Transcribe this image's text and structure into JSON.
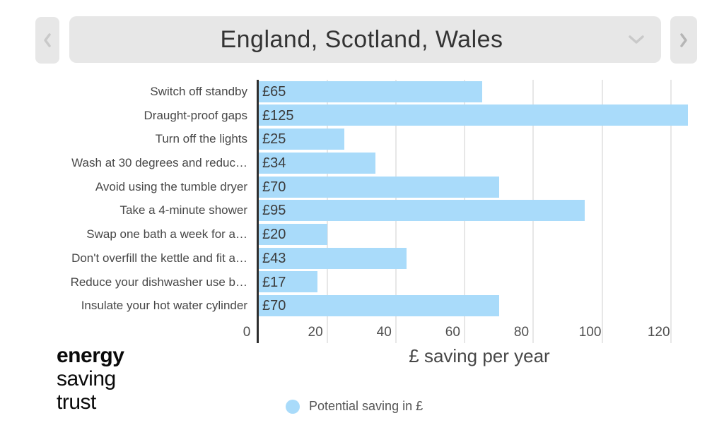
{
  "selector": {
    "value": "England, Scotland, Wales",
    "prev_icon": "chevron-left-icon",
    "next_icon": "chevron-right-icon",
    "dropdown_icon": "chevron-down-icon"
  },
  "logo": {
    "lines": [
      "energy",
      "saving",
      "trust"
    ]
  },
  "colors": {
    "bar": "#a9dbfa",
    "gridline": "#e7e7e7",
    "axis": "#2e2e2e",
    "control_bg": "#e7e7e7"
  },
  "chart_data": {
    "type": "bar",
    "orientation": "horizontal",
    "title": "",
    "categories": [
      "Switch off standby",
      "Draught-proof gaps",
      "Turn off the lights",
      "Wash at 30 degrees and reduc…",
      "Avoid using the tumble dryer",
      "Take a 4-minute shower",
      "Swap one bath a week for a…",
      "Don't overfill the kettle and fit a…",
      "Reduce your dishwasher use b…",
      "Insulate your hot water cylinder"
    ],
    "values": [
      65,
      125,
      25,
      34,
      70,
      95,
      20,
      43,
      17,
      70
    ],
    "bar_labels": [
      "£65",
      "£125",
      "£25",
      "£34",
      "£70",
      "£95",
      "£20",
      "£43",
      "£17",
      "£70"
    ],
    "xlabel": "£ saving per year",
    "ylabel": "",
    "xticks": [
      0,
      20,
      40,
      60,
      80,
      100,
      120
    ],
    "xlim": [
      0,
      128.5
    ],
    "grid": true,
    "legend": {
      "label": "Potential saving in £",
      "position": "bottom"
    }
  }
}
